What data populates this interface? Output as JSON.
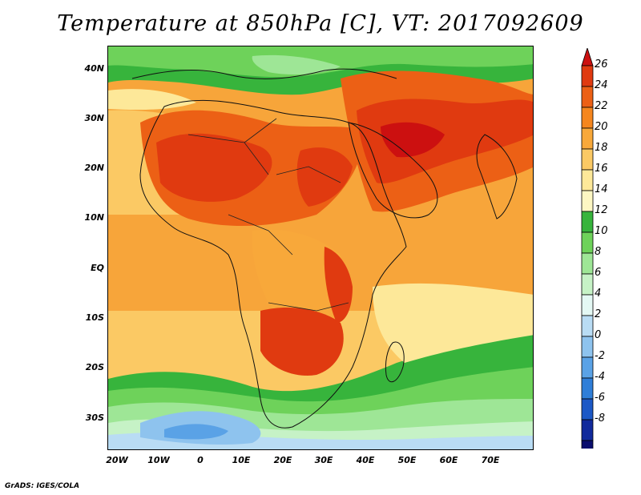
{
  "title": "Temperature at 850hPa [C], VT: 2017092609",
  "credit": "GrADS: IGES/COLA",
  "lat_ticks": [
    "40N",
    "30N",
    "20N",
    "10N",
    "EQ",
    "10S",
    "20S",
    "30S"
  ],
  "lon_ticks": [
    "20W",
    "10W",
    "0",
    "10E",
    "20E",
    "30E",
    "40E",
    "50E",
    "60E",
    "70E"
  ],
  "colorbar": {
    "labels": [
      "26",
      "24",
      "22",
      "20",
      "18",
      "16",
      "14",
      "12",
      "10",
      "8",
      "6",
      "4",
      "2",
      "0",
      "-2",
      "-4",
      "-6",
      "-8"
    ],
    "colors": [
      "#cc1010",
      "#e03a10",
      "#ec6015",
      "#f5861e",
      "#f8a83a",
      "#fbc964",
      "#fde899",
      "#fdf7c3",
      "#37b43c",
      "#6ed25a",
      "#9ee696",
      "#c6f2c6",
      "#e4f8f4",
      "#b9dcf4",
      "#8ec3ee",
      "#5aa2e6",
      "#2f7ed8",
      "#1c58c6",
      "#112a9c",
      "#0a0e6e",
      "#d8d8f4"
    ]
  },
  "map": {
    "domain": {
      "lon": [
        -22,
        80
      ],
      "lat": [
        -36,
        45
      ]
    },
    "legend_position": "right"
  }
}
